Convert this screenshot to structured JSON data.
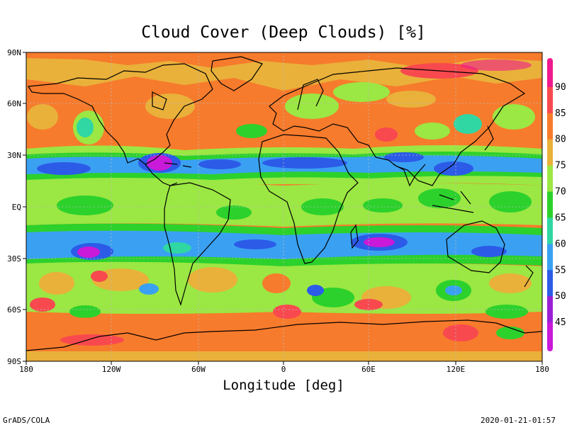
{
  "title": "Cloud Cover (Deep Clouds) [%]",
  "xlabel": "Longitude [deg]",
  "ylabel": "[",
  "footer_left": "GrADS/COLA",
  "footer_right": "2020-01-21-01:57",
  "x_ticks": [
    "180",
    "120W",
    "60W",
    "0",
    "60E",
    "120E",
    "180"
  ],
  "y_ticks": [
    "90N",
    "60N",
    "30N",
    "EQ",
    "30S",
    "60S",
    "90S"
  ],
  "colorbar": {
    "labels": [
      "90",
      "85",
      "80",
      "75",
      "70",
      "65",
      "60",
      "55",
      "50",
      "45"
    ],
    "colors": [
      "#ee1a8e",
      "#f8494f",
      "#f77b2c",
      "#e9b13a",
      "#9be743",
      "#2cd12c",
      "#30d7a3",
      "#3aa1f2",
      "#2c5be8",
      "#9b1fd6",
      "#c81ad8"
    ]
  },
  "map_data": {
    "type": "filled-contour",
    "projection": "equirectangular",
    "lon_range": [
      -180,
      180
    ],
    "lat_range": [
      -90,
      90
    ],
    "background_level": "80",
    "regions": [
      {
        "name": "itcz-north-band",
        "lon": [
          -180,
          180
        ],
        "lat": [
          15,
          28
        ],
        "level": "55"
      },
      {
        "name": "south-subtropic-band",
        "lon": [
          -180,
          180
        ],
        "lat": [
          -28,
          -17
        ],
        "level": "55"
      },
      {
        "name": "equatorial-band",
        "lon": [
          -180,
          180
        ],
        "lat": [
          -12,
          10
        ],
        "level": "70"
      },
      {
        "name": "gulf-of-mexico-minimum",
        "lon": [
          -96,
          -78
        ],
        "lat": [
          19,
          28
        ],
        "level": "45"
      },
      {
        "name": "indian-ocean-minimum",
        "lon": [
          50,
          75
        ],
        "lat": [
          -25,
          -17
        ],
        "level": "45"
      },
      {
        "name": "south-pacific-minimum",
        "lon": [
          -145,
          -125
        ],
        "lat": [
          -30,
          -22
        ],
        "level": "45"
      },
      {
        "name": "southern-ocean-band",
        "lon": [
          -180,
          180
        ],
        "lat": [
          -60,
          -40
        ],
        "level": "70"
      },
      {
        "name": "antarctic-coast",
        "lon": [
          -180,
          180
        ],
        "lat": [
          -90,
          -63
        ],
        "level": "80"
      }
    ]
  }
}
